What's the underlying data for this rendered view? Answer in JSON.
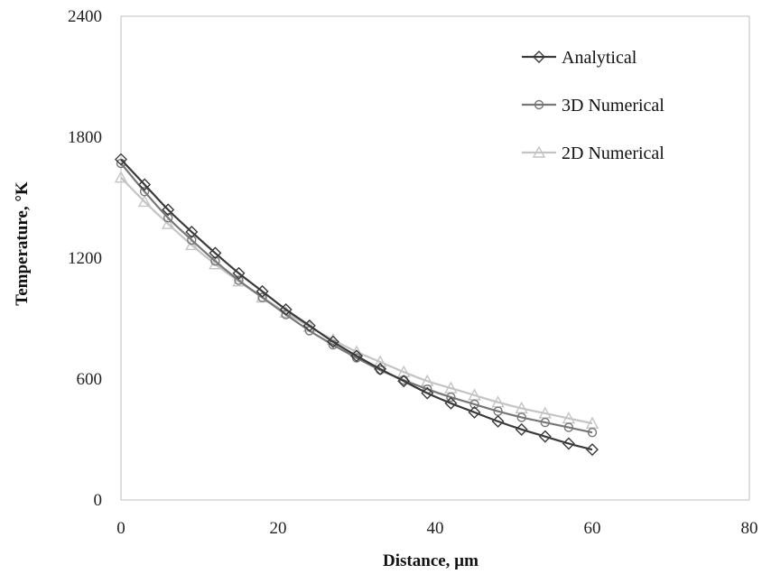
{
  "chart_data": {
    "type": "line",
    "title": "",
    "xlabel": "Distance, µm",
    "ylabel": "Temperature, °K",
    "xlim": [
      0,
      80
    ],
    "ylim": [
      0,
      2400
    ],
    "xticks": [
      0,
      20,
      40,
      60,
      80
    ],
    "yticks": [
      0,
      600,
      1200,
      1800,
      2400
    ],
    "x_tick_labels": [
      "0",
      "20",
      "40",
      "60",
      "80"
    ],
    "y_tick_labels": [
      "0",
      "600",
      "1200",
      "1800",
      "2400"
    ],
    "grid": false,
    "legend_position": "top-right",
    "x": [
      0,
      3,
      6,
      9,
      12,
      15,
      18,
      21,
      24,
      27,
      30,
      33,
      36,
      39,
      42,
      45,
      48,
      51,
      54,
      57,
      60
    ],
    "series": [
      {
        "name": "Analytical",
        "marker": "diamond",
        "color": "#3a3a3a",
        "values": [
          1690,
          1565,
          1440,
          1330,
          1225,
          1125,
          1035,
          945,
          865,
          785,
          715,
          650,
          590,
          530,
          480,
          435,
          390,
          350,
          315,
          280,
          250
        ]
      },
      {
        "name": "3D Numerical",
        "marker": "circle",
        "color": "#777777",
        "values": [
          1670,
          1530,
          1400,
          1290,
          1185,
          1090,
          1005,
          920,
          840,
          770,
          705,
          645,
          595,
          550,
          510,
          475,
          440,
          410,
          385,
          360,
          335
        ]
      },
      {
        "name": "2D Numerical",
        "marker": "triangle",
        "color": "#c4c4c4",
        "values": [
          1600,
          1480,
          1370,
          1265,
          1170,
          1085,
          1005,
          930,
          860,
          795,
          735,
          685,
          635,
          590,
          555,
          520,
          485,
          455,
          430,
          405,
          380
        ]
      }
    ]
  }
}
